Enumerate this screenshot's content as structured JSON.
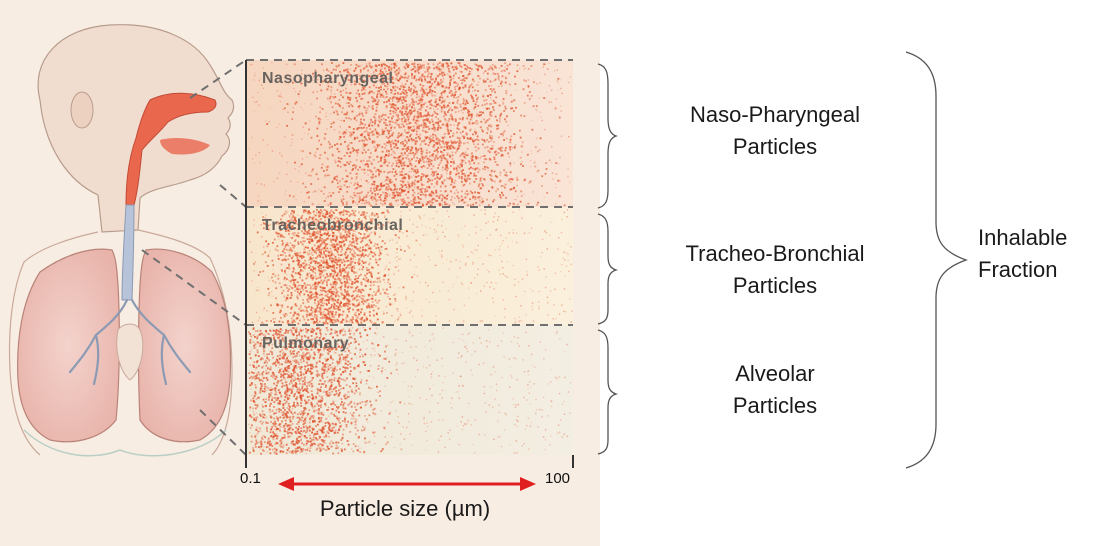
{
  "zones": {
    "nasopharyngeal": "Nasopharyngeal",
    "tracheobronchial": "Tracheobronchial",
    "pulmonary": "Pulmonary"
  },
  "axis": {
    "min_label": "0.1",
    "max_label": "100",
    "title": "Particle size (µm)"
  },
  "brackets": {
    "naso": "Naso-Pharyngeal\nParticles",
    "tracheo": "Tracheo-Bronchial\nParticles",
    "alveolar": "Alveolar\nParticles",
    "inhalable": "Inhalable\nFraction"
  },
  "colors": {
    "particle": "#e0542f",
    "panel_bg": "#f8ede3",
    "arrow": "#e02020"
  }
}
